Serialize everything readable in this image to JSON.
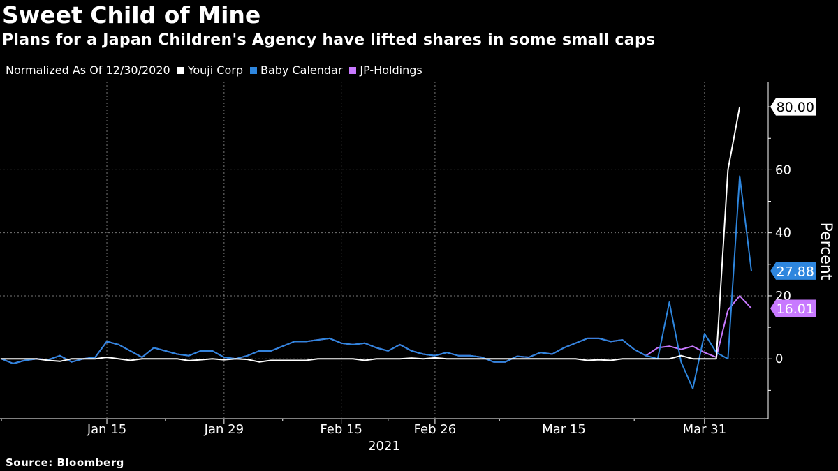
{
  "header": {
    "title": "Sweet Child of Mine",
    "subtitle": "Plans for a Japan Children's Agency have lifted shares in some small caps"
  },
  "legend": {
    "note": "Normalized As Of 12/30/2020"
  },
  "footer": {
    "source": "Source:  Bloomberg"
  },
  "chart_data": {
    "type": "line",
    "title": "Sweet Child of Mine",
    "subtitle": "Plans for a Japan Children's Agency have lifted shares in some small caps",
    "xlabel": "2021",
    "ylabel": "Percent",
    "ylim": [
      -19,
      88
    ],
    "yticks": [
      0,
      20,
      40,
      60
    ],
    "grid": true,
    "legend_position": "top-left",
    "x_ticks": [
      {
        "label": "Jan 15",
        "index": 9
      },
      {
        "label": "Jan 29",
        "index": 19
      },
      {
        "label": "Feb 15",
        "index": 29
      },
      {
        "label": "Feb 26",
        "index": 37
      },
      {
        "label": "Mar 15",
        "index": 48
      },
      {
        "label": "Mar 31",
        "index": 60
      }
    ],
    "year_label": "2021",
    "series": [
      {
        "name": "Youji Corp",
        "color": "#ffffff",
        "last_value_label": "80.00",
        "values": [
          0,
          0,
          0,
          0,
          -0.5,
          -0.8,
          0,
          0,
          0,
          0.5,
          0,
          -0.5,
          0,
          0,
          0,
          0,
          -0.6,
          -0.3,
          0,
          -0.3,
          0,
          -0.2,
          -1,
          -0.5,
          -0.5,
          -0.5,
          -0.5,
          0,
          0,
          0,
          0,
          -0.5,
          0,
          0,
          0,
          0.2,
          0,
          0.3,
          0,
          0,
          0,
          0,
          0,
          0,
          0,
          0,
          0,
          0,
          0,
          0,
          -0.5,
          -0.3,
          -0.5,
          0,
          0,
          0,
          0,
          0,
          1,
          0,
          0,
          0,
          60,
          80
        ]
      },
      {
        "name": "Baby Calendar",
        "color": "#2e86de",
        "last_value_label": "27.88",
        "values": [
          0,
          -1.5,
          -0.5,
          0,
          -0.3,
          1,
          -1,
          0,
          0.5,
          5.5,
          4.5,
          2.5,
          0.5,
          3.5,
          2.5,
          1.5,
          1,
          2.5,
          2.5,
          0.5,
          0,
          1,
          2.5,
          2.5,
          4,
          5.5,
          5.5,
          6,
          6.5,
          5,
          4.5,
          5,
          3.5,
          2.5,
          4.5,
          2.5,
          1.5,
          1,
          2,
          1,
          1,
          0.5,
          -1,
          -1,
          0.8,
          0.5,
          2,
          1.5,
          3.5,
          5,
          6.5,
          6.5,
          5.5,
          6,
          3,
          1,
          0,
          18,
          -1,
          -9.5,
          8,
          2,
          0,
          58,
          27.88
        ]
      },
      {
        "name": "JP-Holdings",
        "color": "#c879ff",
        "last_value_label": "16.01",
        "values": [
          0,
          -1.5,
          -0.5,
          0,
          -0.3,
          1,
          -1,
          0,
          0.5,
          5.5,
          4.5,
          2.5,
          0.5,
          3.5,
          2.5,
          1.5,
          1,
          2.5,
          2.5,
          0.5,
          0,
          1,
          2.5,
          2.5,
          4,
          5.5,
          5.5,
          6,
          6.5,
          5,
          4.5,
          5,
          3.5,
          2.5,
          4.5,
          2.5,
          1.5,
          1,
          2,
          1,
          1,
          0.5,
          -1,
          -1,
          0.8,
          0.5,
          2,
          1.5,
          3.5,
          5,
          6.5,
          6.5,
          5.5,
          6,
          3,
          1,
          3.5,
          4,
          3,
          4,
          2,
          0.5,
          15.5,
          20,
          16.01
        ]
      }
    ]
  }
}
